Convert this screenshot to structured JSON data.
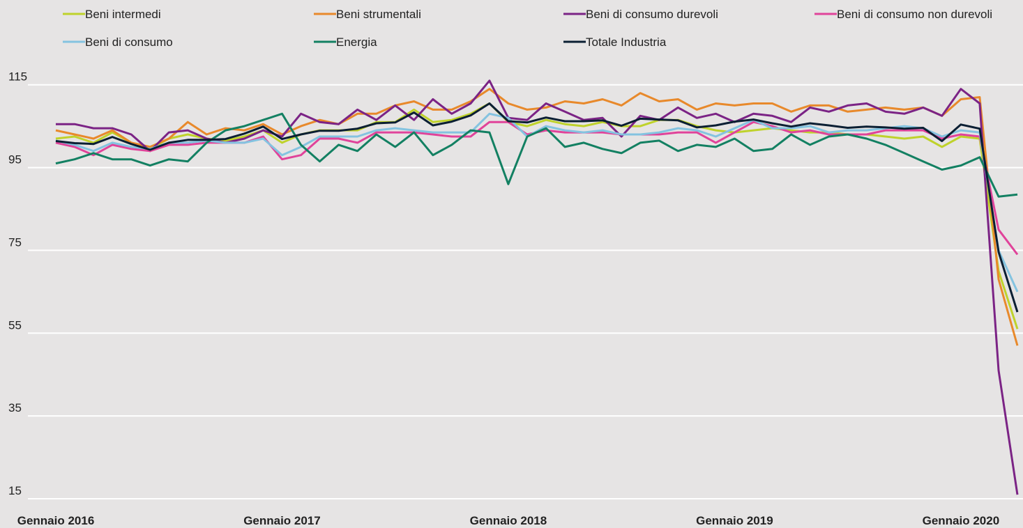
{
  "chart_data": {
    "type": "line",
    "categories": [
      "Gennaio 2016",
      null,
      null,
      null,
      null,
      null,
      null,
      null,
      null,
      null,
      null,
      null,
      "Gennaio 2017",
      null,
      null,
      null,
      null,
      null,
      null,
      null,
      null,
      null,
      null,
      null,
      "Gennaio 2018",
      null,
      null,
      null,
      null,
      null,
      null,
      null,
      null,
      null,
      null,
      null,
      "Gennaio 2019",
      null,
      null,
      null,
      null,
      null,
      null,
      null,
      null,
      null,
      null,
      null,
      "Gennaio 2020",
      null,
      null,
      null
    ],
    "ylim": [
      15,
      120
    ],
    "yticks": [
      15,
      35,
      55,
      75,
      95,
      115
    ],
    "grid": true,
    "series": [
      {
        "name": "Beni intermedi",
        "color": "#bfd22b",
        "values": [
          102,
          102.5,
          101,
          103.5,
          101,
          99.5,
          102,
          103,
          102,
          101.5,
          102.5,
          104,
          101,
          103,
          104,
          104,
          104,
          106,
          106,
          109,
          106,
          106.5,
          108,
          110.5,
          106,
          105,
          106.5,
          105.5,
          105,
          106,
          105,
          105,
          106.5,
          106.5,
          105,
          104,
          103.5,
          104,
          104.5,
          104,
          103.5,
          103.5,
          103,
          103,
          102.5,
          102,
          102.5,
          100,
          102.5,
          102,
          70,
          56
        ]
      },
      {
        "name": "Beni strumentali",
        "color": "#e8892b",
        "values": [
          104,
          103,
          102,
          104,
          101,
          100,
          102,
          106,
          103,
          104.5,
          104,
          105.5,
          103,
          105,
          106.5,
          105.5,
          108,
          108,
          110,
          111,
          109,
          109,
          111,
          114,
          110.5,
          109,
          109.5,
          111,
          110.5,
          111.5,
          110,
          113,
          111,
          111.5,
          109,
          110.5,
          110,
          110.5,
          110.5,
          108.5,
          110,
          110,
          108.5,
          109,
          109.5,
          109,
          109.5,
          107.5,
          111.5,
          112,
          68,
          52
        ]
      },
      {
        "name": "Beni di consumo durevoli",
        "color": "#7b2385",
        "values": [
          105.5,
          105.5,
          104.5,
          104.5,
          103,
          99,
          103.5,
          104,
          102,
          101,
          102,
          104,
          102.5,
          108,
          106,
          105.5,
          109,
          106.5,
          110,
          106.5,
          111.5,
          108,
          110.5,
          116,
          107,
          106.5,
          110.5,
          108.5,
          106.5,
          107,
          102.5,
          107.5,
          106.5,
          109.5,
          107,
          108,
          106,
          108,
          107.5,
          106,
          109.5,
          108.5,
          110,
          110.5,
          108.5,
          108,
          109.5,
          107.5,
          114,
          110.5,
          46,
          16
        ]
      },
      {
        "name": "Beni di consumo non durevoli",
        "color": "#e0439a",
        "values": [
          101,
          100,
          98,
          100.5,
          99.5,
          99,
          100.5,
          100.5,
          101,
          101,
          101,
          102.5,
          97,
          98,
          102,
          102,
          101,
          103.5,
          103.5,
          103.5,
          103,
          102.5,
          102.5,
          106,
          106,
          103,
          104,
          103.5,
          103.5,
          103.5,
          103,
          103,
          103,
          103.5,
          103.5,
          101,
          103.5,
          106,
          105,
          103.5,
          104,
          103,
          103,
          103,
          104,
          104,
          104,
          102,
          103,
          102.5,
          80,
          74
        ]
      },
      {
        "name": "Beni di consumo",
        "color": "#84c3e0",
        "values": [
          101.5,
          100.5,
          99,
          101,
          100,
          99.5,
          101,
          101,
          101.5,
          101,
          101,
          102,
          98,
          100,
          102.5,
          102.5,
          102.5,
          104,
          104.5,
          104,
          103.5,
          103.5,
          103.5,
          108,
          107,
          102.5,
          105,
          104,
          103.5,
          104,
          103,
          103,
          103.5,
          104.5,
          104,
          102.5,
          104.5,
          106.5,
          104.5,
          104.5,
          105,
          103.5,
          104,
          104,
          104.5,
          105,
          104.5,
          102.5,
          104,
          103.5,
          75,
          65
        ]
      },
      {
        "name": "Energia",
        "color": "#138062",
        "values": [
          96,
          97,
          98.5,
          97,
          97,
          95.5,
          97,
          96.5,
          101,
          104,
          105,
          106.5,
          108,
          100.5,
          96.5,
          100.5,
          99,
          103,
          100,
          103.5,
          98,
          100.5,
          104,
          103.5,
          91,
          102.5,
          104.5,
          100,
          101,
          99.5,
          98.5,
          101,
          101.5,
          99,
          100.5,
          100,
          102,
          99,
          99.5,
          103,
          100.5,
          102.5,
          103,
          102,
          100.5,
          98.5,
          96.5,
          94.5,
          95.5,
          97.5,
          88,
          88.5
        ]
      },
      {
        "name": "Totale Industria",
        "color": "#0b1f33",
        "values": [
          101.4,
          100.9,
          100.7,
          102.4,
          100.7,
          99.3,
          101,
          101.7,
          101.7,
          101.9,
          103.2,
          104.9,
          101.9,
          103,
          103.9,
          103.9,
          104.4,
          105.7,
          105.9,
          108.3,
          105.2,
          106.1,
          107.6,
          110.5,
          106.2,
          105.9,
          107.1,
          106.2,
          106.2,
          106.4,
          105.1,
          106.8,
          106.6,
          106.4,
          104.7,
          105.2,
          106.1,
          106.6,
          105.7,
          104.9,
          105.7,
          105.2,
          104.6,
          104.9,
          104.7,
          104.4,
          104.6,
          101.4,
          105.4,
          104.4,
          74.6,
          60.1
        ]
      }
    ]
  }
}
